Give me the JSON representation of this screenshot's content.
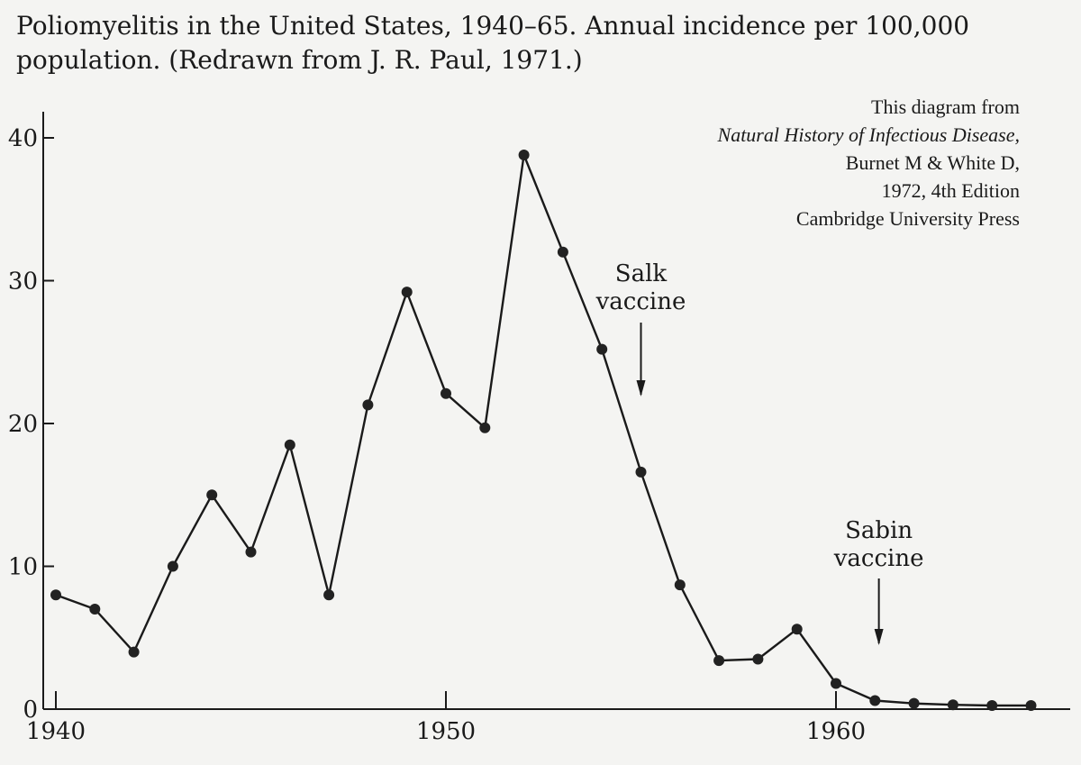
{
  "caption": {
    "line1": "Poliomyelitis in the United States, 1940–65. Annual incidence per 100,000",
    "line2": "population. (Redrawn from J. R. Paul, 1971.)"
  },
  "credit": {
    "line1": "This diagram from",
    "line2": "Natural History of Infectious Disease,",
    "line3": "Burnet M & White D,",
    "line4": "1972, 4th Edition",
    "line5": "Cambridge University Press"
  },
  "chart_data": {
    "type": "line",
    "x": [
      1940,
      1941,
      1942,
      1943,
      1944,
      1945,
      1946,
      1947,
      1948,
      1949,
      1950,
      1951,
      1952,
      1953,
      1954,
      1955,
      1956,
      1957,
      1958,
      1959,
      1960,
      1961,
      1962,
      1963,
      1964,
      1965
    ],
    "series": [
      {
        "values": [
          8,
          7,
          4,
          10,
          15,
          11,
          18.5,
          8,
          21.3,
          29.2,
          22.1,
          19.7,
          38.8,
          32,
          25.2,
          16.6,
          8.7,
          3.4,
          3.5,
          5.6,
          1.8,
          0.6,
          0.4,
          0.3,
          0.25,
          0.25
        ]
      }
    ],
    "xlim": [
      1940,
      1966
    ],
    "ylim": [
      0,
      40
    ],
    "xticks": [
      1940,
      1950,
      1960
    ],
    "yticks": [
      0,
      10,
      20,
      30,
      40
    ],
    "grid": false,
    "annotations": [
      {
        "label_line1": "Salk",
        "label_line2": "vaccine",
        "x": 1955
      },
      {
        "label_line1": "Sabin",
        "label_line2": "vaccine",
        "x": 1961.1
      }
    ]
  }
}
